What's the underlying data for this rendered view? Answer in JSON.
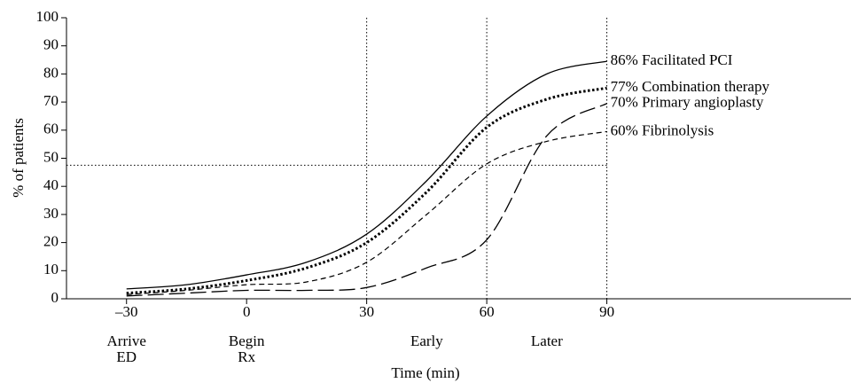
{
  "chart_data": {
    "type": "line",
    "x_label": "Time (min)",
    "y_label": "% of patients",
    "x": [
      -30,
      -15,
      0,
      15,
      30,
      45,
      60,
      75,
      90
    ],
    "series": [
      {
        "name": "86% Facilitated PCI",
        "color": "#000000",
        "dash": "solid",
        "width": 1.3,
        "values": [
          3.5,
          5,
          8.5,
          13,
          23,
          42,
          65,
          80,
          84.5
        ]
      },
      {
        "name": "77% Combination therapy",
        "color": "#000000",
        "dash": "dotted",
        "width": 3,
        "values": [
          2,
          3.5,
          6.5,
          11,
          20,
          38,
          61,
          71,
          75
        ]
      },
      {
        "name": "70% Primary angioplasty",
        "color": "#000000",
        "dash": "long-dash",
        "width": 1.3,
        "values": [
          1,
          2,
          3,
          3,
          4,
          11,
          21,
          58,
          69.5
        ]
      },
      {
        "name": "60% Fibrinolysis",
        "color": "#000000",
        "dash": "dashed",
        "width": 1.2,
        "values": [
          1.5,
          3,
          5,
          6,
          13,
          30,
          48,
          56,
          59.5
        ]
      }
    ],
    "xlim": [
      -45,
      151
    ],
    "ylim": [
      0,
      100
    ],
    "xticks": [
      {
        "value": -30,
        "label": "–30"
      },
      0,
      30,
      60,
      90
    ],
    "yticks": [
      0,
      10,
      20,
      30,
      40,
      50,
      60,
      70,
      80,
      90,
      100
    ],
    "reference_lines": {
      "x": [
        30,
        60,
        90
      ],
      "y": 47.5
    },
    "phases": [
      {
        "x": -30,
        "lines": [
          "Arrive",
          "ED"
        ]
      },
      {
        "x": 0,
        "lines": [
          "Begin",
          "Rx"
        ]
      },
      {
        "x": 45,
        "lines": [
          "Early"
        ]
      },
      {
        "x": 75,
        "lines": [
          "Later"
        ]
      }
    ],
    "grid": false
  }
}
